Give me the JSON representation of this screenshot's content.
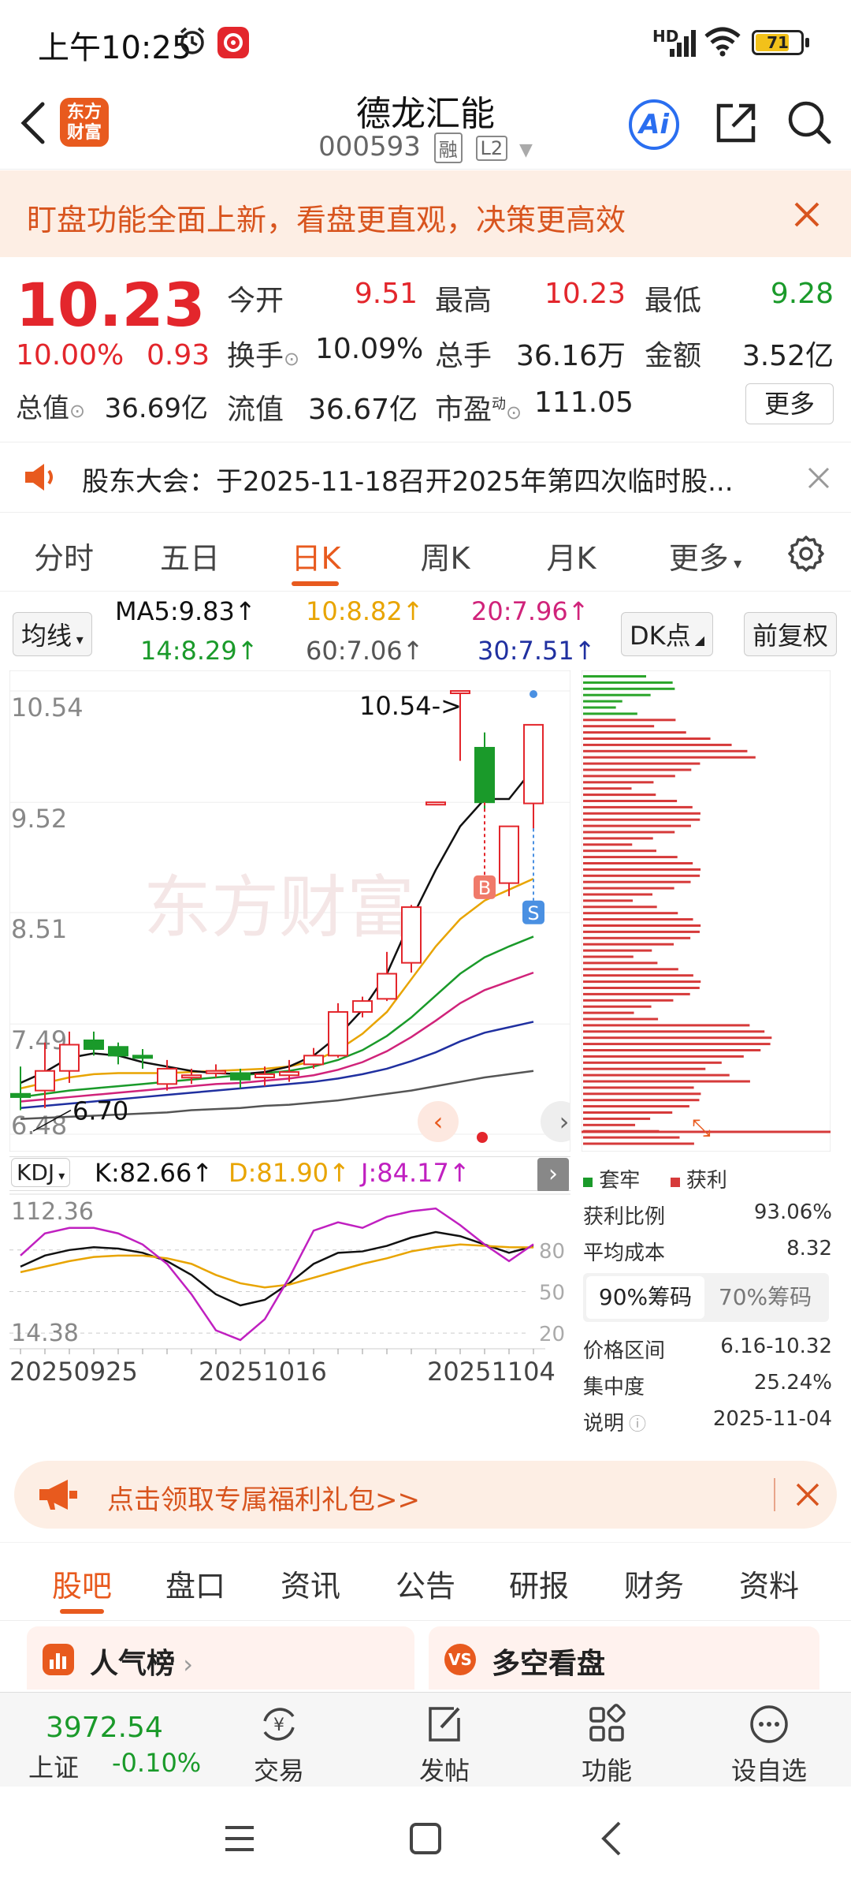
{
  "status_bar": {
    "time": "上午10:25",
    "network": "HD",
    "battery": "71"
  },
  "header": {
    "app_logo_text": "东方财富",
    "stock_name": "德龙汇能",
    "stock_code": "000593",
    "tag_margin": "融",
    "tag_level": "L2",
    "ai_label": "Ai"
  },
  "banner": {
    "text": "盯盘功能全面上新，看盘更直观，决策更高效"
  },
  "quote": {
    "price": "10.23",
    "change_pct": "10.00%",
    "change_amt": "0.93",
    "open_label": "今开",
    "open": "9.51",
    "high_label": "最高",
    "high": "10.23",
    "low_label": "最低",
    "low": "9.28",
    "turnover_label": "换手",
    "turnover": "10.09%",
    "volume_label": "总手",
    "volume": "36.16万",
    "amount_label": "金额",
    "amount": "3.52亿",
    "mktcap_label": "总值",
    "mktcap": "36.69亿",
    "float_label": "流值",
    "float": "36.67亿",
    "pe_label": "市盈",
    "pe_sup": "动",
    "pe": "111.05",
    "more_label": "更多"
  },
  "notice": {
    "text": "股东大会：于2025-11-18召开2025年第四次临时股..."
  },
  "period_tabs": [
    "分时",
    "五日",
    "日K",
    "周K",
    "月K",
    "更多"
  ],
  "active_period": "日K",
  "ma_bar": {
    "selector": "均线",
    "ma5": "MA5:9.83",
    "ma10": "10:8.82",
    "ma20": "20:7.96",
    "ma14": "14:8.29",
    "ma60": "60:7.06",
    "ma30": "30:7.51",
    "dk_label": "DK点",
    "adjust_label": "前复权",
    "colors": {
      "ma5": "#111111",
      "ma10": "#e8a400",
      "ma20": "#d0237a",
      "ma14": "#1a9a2a",
      "ma60": "#555555",
      "ma30": "#2030a0"
    }
  },
  "kline": {
    "y_labels": [
      "10.54",
      "9.52",
      "8.51",
      "7.49",
      "6.48"
    ],
    "max_marker": "10.54->",
    "min_marker": "6.70",
    "buy_marker": "B",
    "sell_marker": "S"
  },
  "chart_data": [
    {
      "type": "candlestick",
      "title": "",
      "ylim": [
        6.48,
        10.54
      ],
      "candles": [
        {
          "o": 6.85,
          "c": 6.82,
          "h": 7.1,
          "l": 6.7
        },
        {
          "o": 6.88,
          "c": 7.06,
          "h": 7.32,
          "l": 6.72
        },
        {
          "o": 7.06,
          "c": 7.3,
          "h": 7.42,
          "l": 6.95
        },
        {
          "o": 7.34,
          "c": 7.26,
          "h": 7.42,
          "l": 7.2
        },
        {
          "o": 7.28,
          "c": 7.2,
          "h": 7.32,
          "l": 7.12
        },
        {
          "o": 7.2,
          "c": 7.18,
          "h": 7.26,
          "l": 7.08
        },
        {
          "o": 6.94,
          "c": 7.08,
          "h": 7.16,
          "l": 6.88
        },
        {
          "o": 7.02,
          "c": 7.02,
          "h": 7.08,
          "l": 6.94
        },
        {
          "o": 7.06,
          "c": 7.06,
          "h": 7.12,
          "l": 7.0
        },
        {
          "o": 7.04,
          "c": 6.98,
          "h": 7.08,
          "l": 6.9
        },
        {
          "o": 7.0,
          "c": 7.03,
          "h": 7.1,
          "l": 6.92
        },
        {
          "o": 7.02,
          "c": 7.05,
          "h": 7.16,
          "l": 6.96
        },
        {
          "o": 7.12,
          "c": 7.2,
          "h": 7.27,
          "l": 7.08
        },
        {
          "o": 7.2,
          "c": 7.6,
          "h": 7.68,
          "l": 7.18
        },
        {
          "o": 7.6,
          "c": 7.7,
          "h": 7.74,
          "l": 7.55
        },
        {
          "o": 7.72,
          "c": 7.95,
          "h": 8.15,
          "l": 7.7
        },
        {
          "o": 8.05,
          "c": 8.56,
          "h": 8.58,
          "l": 7.96
        },
        {
          "o": 9.52,
          "c": 9.52,
          "h": 9.52,
          "l": 9.52
        },
        {
          "o": 10.54,
          "c": 10.54,
          "h": 10.54,
          "l": 9.9
        },
        {
          "o": 10.02,
          "c": 9.52,
          "h": 10.16,
          "l": 9.46
        },
        {
          "o": 8.78,
          "c": 9.3,
          "h": 9.3,
          "l": 8.66
        },
        {
          "o": 9.51,
          "c": 10.23,
          "h": 10.23,
          "l": 9.28
        }
      ],
      "ma5": [
        6.95,
        7.05,
        7.18,
        7.22,
        7.2,
        7.14,
        7.1,
        7.06,
        7.04,
        7.03,
        7.05,
        7.1,
        7.2,
        7.38,
        7.62,
        7.95,
        8.45,
        8.9,
        9.3,
        9.55,
        9.55,
        9.83
      ],
      "ma10": [
        6.9,
        6.95,
        7.0,
        7.03,
        7.04,
        7.04,
        7.04,
        7.05,
        7.06,
        7.07,
        7.08,
        7.1,
        7.15,
        7.25,
        7.4,
        7.6,
        7.9,
        8.2,
        8.45,
        8.62,
        8.72,
        8.82
      ],
      "ma14": [
        6.82,
        6.85,
        6.88,
        6.9,
        6.92,
        6.94,
        6.96,
        6.98,
        7.0,
        7.02,
        7.04,
        7.06,
        7.1,
        7.16,
        7.25,
        7.38,
        7.55,
        7.75,
        7.95,
        8.1,
        8.2,
        8.29
      ],
      "ma20": [
        6.78,
        6.8,
        6.82,
        6.84,
        6.86,
        6.88,
        6.9,
        6.92,
        6.94,
        6.95,
        6.97,
        6.99,
        7.02,
        7.07,
        7.14,
        7.24,
        7.37,
        7.52,
        7.68,
        7.8,
        7.88,
        7.96
      ],
      "ma30": [
        6.72,
        6.74,
        6.76,
        6.78,
        6.8,
        6.82,
        6.84,
        6.86,
        6.88,
        6.9,
        6.92,
        6.94,
        6.96,
        6.99,
        7.03,
        7.08,
        7.15,
        7.23,
        7.33,
        7.41,
        7.46,
        7.51
      ],
      "ma60": [
        6.62,
        6.63,
        6.64,
        6.65,
        6.66,
        6.67,
        6.68,
        6.7,
        6.71,
        6.72,
        6.74,
        6.75,
        6.77,
        6.79,
        6.82,
        6.85,
        6.88,
        6.92,
        6.96,
        7.0,
        7.03,
        7.06
      ]
    },
    {
      "type": "line",
      "title": "KDJ",
      "ylim": [
        14.38,
        112.36
      ],
      "y_labels": [
        "112.36",
        "14.38"
      ],
      "right_labels": [
        "80",
        "50",
        "20"
      ],
      "x_labels": [
        "20250925",
        "20251016",
        "20251104"
      ],
      "series": [
        {
          "name": "K:82.66",
          "color": "#111111",
          "values": [
            68,
            76,
            80,
            82,
            81,
            78,
            72,
            62,
            48,
            40,
            44,
            56,
            70,
            78,
            79,
            83,
            89,
            93,
            90,
            84,
            78,
            82.66
          ]
        },
        {
          "name": "D:81.90",
          "color": "#e8a400",
          "values": [
            64,
            68,
            72,
            75,
            76,
            76,
            74,
            70,
            62,
            56,
            53,
            55,
            60,
            65,
            70,
            74,
            79,
            82,
            84,
            83,
            82,
            81.9
          ]
        },
        {
          "name": "J:84.17",
          "color": "#c020c0",
          "values": [
            76,
            92,
            96,
            96,
            92,
            84,
            70,
            48,
            22,
            15,
            30,
            60,
            94,
            100,
            96,
            104,
            108,
            110,
            98,
            84,
            72,
            84.17
          ]
        }
      ]
    }
  ],
  "chip": {
    "legend_trapped": "套牢",
    "legend_profit": "获利",
    "profit_ratio_label": "获利比例",
    "profit_ratio": "93.06%",
    "avg_cost_label": "平均成本",
    "avg_cost": "8.32",
    "tab90": "90%筹码",
    "tab70": "70%筹码",
    "range_label": "价格区间",
    "range": "6.16-10.32",
    "concentration_label": "集中度",
    "concentration": "25.24%",
    "note_label": "说明",
    "note_date": "2025-11-04"
  },
  "promo": {
    "text": "点击领取专属福利礼包>>"
  },
  "section_tabs": [
    "股吧",
    "盘口",
    "资讯",
    "公告",
    "研报",
    "财务",
    "资料"
  ],
  "active_section": "股吧",
  "cards": {
    "popularity": "人气榜",
    "long_short": "多空看盘"
  },
  "bottom_bar": {
    "index_value": "3972.54",
    "index_name": "上证",
    "index_change": "-0.10%",
    "trade": "交易",
    "post": "发帖",
    "functions": "功能",
    "watchlist": "设自选"
  }
}
